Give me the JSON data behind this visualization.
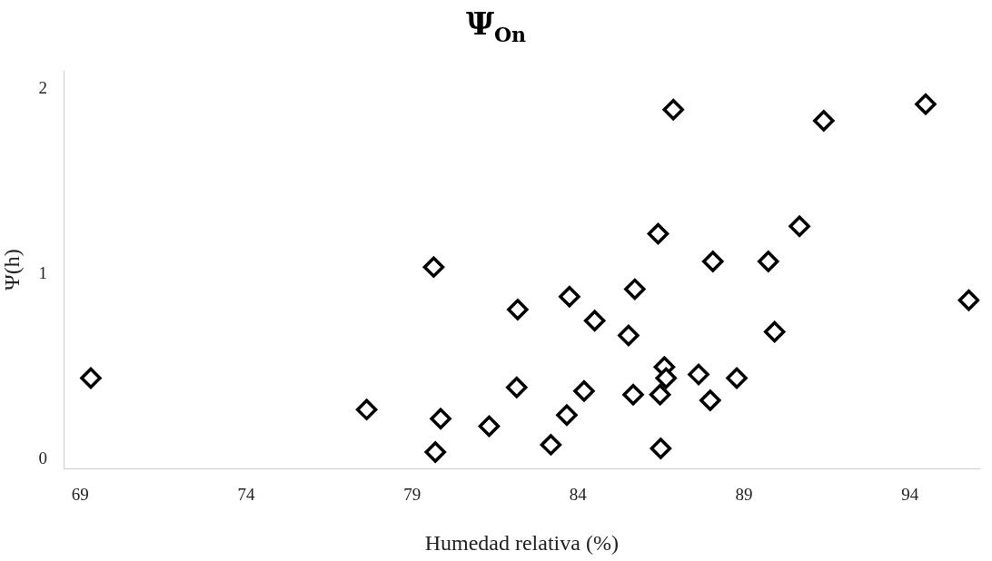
{
  "chart_data": {
    "type": "scatter",
    "title": "Ψ$_{On}$",
    "xlabel": "Humedad relativa (%)",
    "ylabel": "Ψ(h)",
    "x": [
      69.32,
      77.63,
      79.65,
      79.7,
      79.86,
      81.32,
      82.18,
      82.15,
      83.18,
      83.66,
      83.74,
      84.18,
      84.5,
      85.52,
      85.71,
      85.66,
      86.47,
      86.41,
      86.49,
      86.6,
      86.65,
      86.87,
      87.63,
      87.98,
      88.06,
      88.78,
      89.73,
      89.92,
      90.67,
      91.4,
      94.47,
      95.77
    ],
    "values": [
      0.44,
      0.27,
      1.04,
      0.04,
      0.22,
      0.18,
      0.81,
      0.39,
      0.08,
      0.24,
      0.88,
      0.37,
      0.75,
      0.67,
      0.92,
      0.35,
      0.35,
      1.22,
      0.06,
      0.5,
      0.44,
      1.89,
      0.46,
      0.32,
      1.07,
      0.44,
      1.07,
      0.69,
      1.26,
      1.83,
      1.92,
      0.86
    ],
    "color": "#000000",
    "marker": "diamond",
    "xlim": [
      68.5,
      96.1
    ],
    "xticks": [
      69,
      74,
      79,
      84,
      89,
      94
    ],
    "ylim": [
      -0.05,
      2.1
    ],
    "yticks": [
      0,
      1,
      2
    ],
    "grid": false,
    "legend": false
  }
}
